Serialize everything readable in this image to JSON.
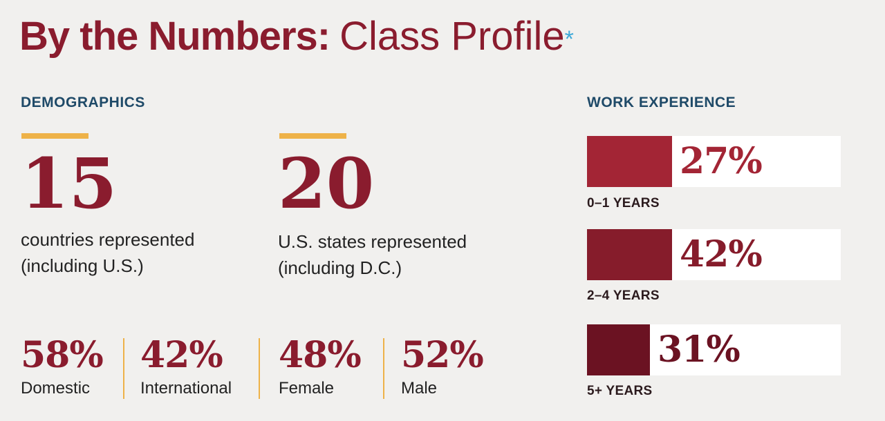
{
  "title": {
    "bold": "By the Numbers:",
    "light": "Class Profile",
    "star": "*"
  },
  "demographics": {
    "heading": "DEMOGRAPHICS",
    "big_stats": [
      {
        "value": "15",
        "line1": "countries represented",
        "line2": "(including U.S.)"
      },
      {
        "value": "20",
        "line1": "U.S. states represented",
        "line2": "(including D.C.)"
      }
    ],
    "small_stats": [
      {
        "value": "58%",
        "label": "Domestic"
      },
      {
        "value": "42%",
        "label": "International"
      },
      {
        "value": "48%",
        "label": "Female"
      },
      {
        "value": "52%",
        "label": "Male"
      }
    ]
  },
  "work_experience": {
    "heading": "WORK EXPERIENCE",
    "bars": [
      {
        "value": "27%",
        "label": "0–1 YEARS"
      },
      {
        "value": "42%",
        "label": "2–4 YEARS"
      },
      {
        "value": "31%",
        "label": "5+ YEARS"
      }
    ]
  },
  "colors": {
    "title": "#8a1c2e",
    "heading": "#1f4a68",
    "accent": "#eeb248",
    "star": "#3fa9d8"
  },
  "chart_data": {
    "type": "bar",
    "categories": [
      "0–1 YEARS",
      "2–4 YEARS",
      "5+ YEARS"
    ],
    "values": [
      27,
      42,
      31
    ],
    "title": "WORK EXPERIENCE",
    "xlabel": "",
    "ylabel": "",
    "ylim": [
      0,
      100
    ],
    "colors": [
      "#a32535",
      "#861c2b",
      "#6b1222"
    ]
  }
}
